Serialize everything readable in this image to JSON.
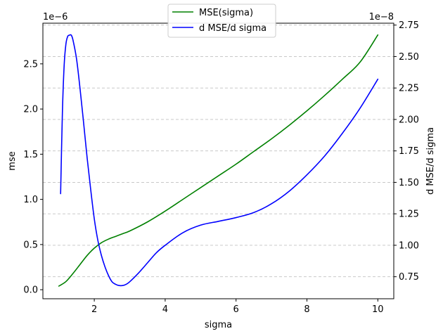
{
  "chart_data": {
    "type": "line",
    "xlabel": "sigma",
    "ylabel_left": "mse",
    "ylabel_right": "d MSE/d sigma",
    "offset_left": "1e−6",
    "offset_right": "1e−8",
    "xlim": [
      0.55,
      10.45
    ],
    "ylim_left": [
      -0.1,
      2.95
    ],
    "ylim_right": [
      0.575,
      2.765
    ],
    "x_ticks": [
      2,
      4,
      6,
      8,
      10
    ],
    "x_tick_labels": [
      "2",
      "4",
      "6",
      "8",
      "10"
    ],
    "y_left_ticks": [
      0.0,
      0.5,
      1.0,
      1.5,
      2.0,
      2.5
    ],
    "y_left_tick_labels": [
      "0.0",
      "0.5",
      "1.0",
      "1.5",
      "2.0",
      "2.5"
    ],
    "y_right_ticks": [
      0.75,
      1.0,
      1.25,
      1.5,
      1.75,
      2.0,
      2.25,
      2.5,
      2.75
    ],
    "y_right_tick_labels": [
      "0.75",
      "1.00",
      "1.25",
      "1.50",
      "1.75",
      "2.00",
      "2.25",
      "2.50",
      "2.75"
    ],
    "grid": "horizontal dashed on right axis",
    "legend_placement": "top-center",
    "series": [
      {
        "name": "MSE(sigma)",
        "axis": "left",
        "color": "#008000",
        "x": [
          1.0,
          1.2,
          1.4,
          1.6,
          1.8,
          2.0,
          2.2,
          2.4,
          2.6,
          2.8,
          3.0,
          3.5,
          4.0,
          4.5,
          5.0,
          5.5,
          6.0,
          6.5,
          7.0,
          7.5,
          8.0,
          8.5,
          9.0,
          9.5,
          10.0
        ],
        "y": [
          0.04,
          0.09,
          0.18,
          0.28,
          0.38,
          0.46,
          0.52,
          0.56,
          0.59,
          0.62,
          0.65,
          0.75,
          0.87,
          1.0,
          1.13,
          1.26,
          1.39,
          1.53,
          1.67,
          1.82,
          1.98,
          2.15,
          2.33,
          2.52,
          2.82
        ]
      },
      {
        "name": "d MSE/d sigma",
        "axis": "right",
        "color": "#0000ff",
        "x": [
          1.05,
          1.1,
          1.15,
          1.2,
          1.25,
          1.3,
          1.35,
          1.4,
          1.5,
          1.6,
          1.7,
          1.8,
          1.9,
          2.0,
          2.1,
          2.2,
          2.3,
          2.4,
          2.5,
          2.6,
          2.7,
          2.8,
          2.9,
          3.0,
          3.25,
          3.5,
          3.75,
          4.0,
          4.5,
          5.0,
          5.5,
          6.0,
          6.5,
          7.0,
          7.5,
          8.0,
          8.5,
          9.0,
          9.5,
          10.0
        ],
        "y": [
          1.41,
          2.05,
          2.43,
          2.6,
          2.66,
          2.67,
          2.67,
          2.63,
          2.48,
          2.24,
          1.97,
          1.69,
          1.44,
          1.21,
          1.04,
          0.92,
          0.83,
          0.76,
          0.71,
          0.69,
          0.68,
          0.68,
          0.69,
          0.71,
          0.78,
          0.86,
          0.94,
          1.0,
          1.1,
          1.16,
          1.19,
          1.22,
          1.26,
          1.33,
          1.43,
          1.56,
          1.71,
          1.89,
          2.09,
          2.32
        ]
      }
    ]
  }
}
